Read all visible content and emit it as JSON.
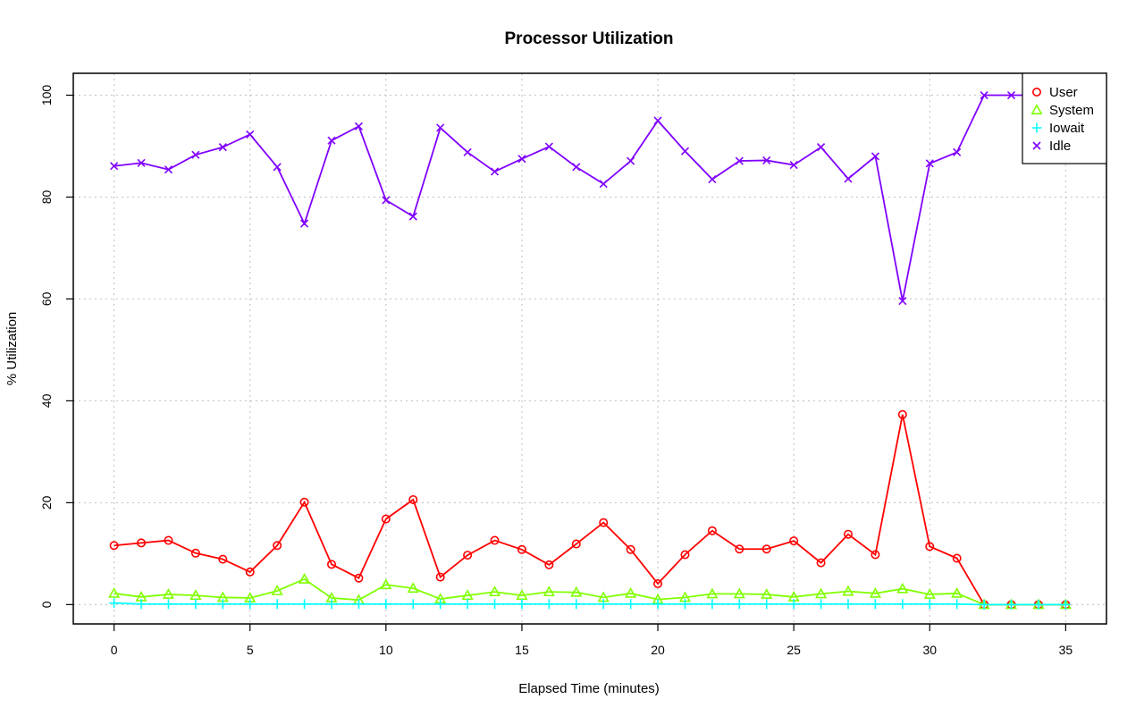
{
  "chart_data": {
    "type": "line",
    "title": "Processor Utilization",
    "xlabel": "Elapsed Time (minutes)",
    "ylabel": "% Utilization",
    "xlim": [
      -1.5,
      36.5
    ],
    "ylim": [
      -3.8,
      104.3
    ],
    "x_ticks": [
      0,
      5,
      10,
      15,
      20,
      25,
      30,
      35
    ],
    "y_ticks": [
      0,
      20,
      40,
      60,
      80,
      100
    ],
    "grid": true,
    "legend_position": "top-right",
    "x": [
      0,
      1,
      2,
      3,
      4,
      5,
      6,
      7,
      8,
      9,
      10,
      11,
      12,
      13,
      14,
      15,
      16,
      17,
      18,
      19,
      20,
      21,
      22,
      23,
      24,
      25,
      26,
      27,
      28,
      29,
      30,
      31,
      32,
      33,
      34,
      35
    ],
    "series": [
      {
        "name": "User",
        "color": "#ff0000",
        "marker": "circle",
        "values": [
          11.6,
          12.1,
          12.6,
          10.1,
          8.9,
          6.4,
          11.6,
          20.1,
          7.9,
          5.2,
          16.8,
          20.6,
          5.4,
          9.7,
          12.6,
          10.8,
          7.8,
          11.9,
          16.1,
          10.8,
          4.1,
          9.8,
          14.5,
          10.9,
          10.9,
          12.5,
          8.2,
          13.8,
          9.8,
          37.3,
          11.4,
          9.1,
          0,
          0,
          0,
          0
        ]
      },
      {
        "name": "System",
        "color": "#80ff00",
        "marker": "triangle",
        "values": [
          2.2,
          1.5,
          2.0,
          1.8,
          1.4,
          1.3,
          2.7,
          5.0,
          1.3,
          0.9,
          3.9,
          3.2,
          1.1,
          1.8,
          2.5,
          1.8,
          2.5,
          2.4,
          1.4,
          2.2,
          1.0,
          1.4,
          2.1,
          2.1,
          2.0,
          1.5,
          2.1,
          2.6,
          2.2,
          3.1,
          2.0,
          2.2,
          0,
          0,
          0,
          0
        ]
      },
      {
        "name": "Iowait",
        "color": "#00ffff",
        "marker": "plus",
        "values": [
          0.3,
          0.1,
          0.1,
          0.1,
          0.1,
          0.1,
          0.1,
          0.1,
          0.1,
          0.1,
          0.1,
          0.1,
          0.1,
          0.1,
          0.1,
          0.1,
          0.1,
          0.1,
          0.1,
          0.1,
          0.1,
          0.1,
          0.1,
          0.1,
          0.1,
          0.1,
          0.1,
          0.1,
          0.1,
          0.1,
          0.1,
          0.1,
          0,
          0,
          0,
          0
        ]
      },
      {
        "name": "Idle",
        "color": "#8000ff",
        "marker": "cross",
        "values": [
          86.1,
          86.7,
          85.4,
          88.3,
          89.8,
          92.3,
          85.9,
          74.8,
          91.1,
          93.9,
          79.4,
          76.2,
          93.6,
          88.8,
          85.0,
          87.5,
          89.9,
          85.9,
          82.6,
          87.1,
          95.0,
          89.0,
          83.5,
          87.1,
          87.2,
          86.3,
          89.8,
          83.6,
          88.0,
          59.6,
          86.6,
          88.8,
          100,
          100,
          100,
          100
        ]
      }
    ]
  }
}
